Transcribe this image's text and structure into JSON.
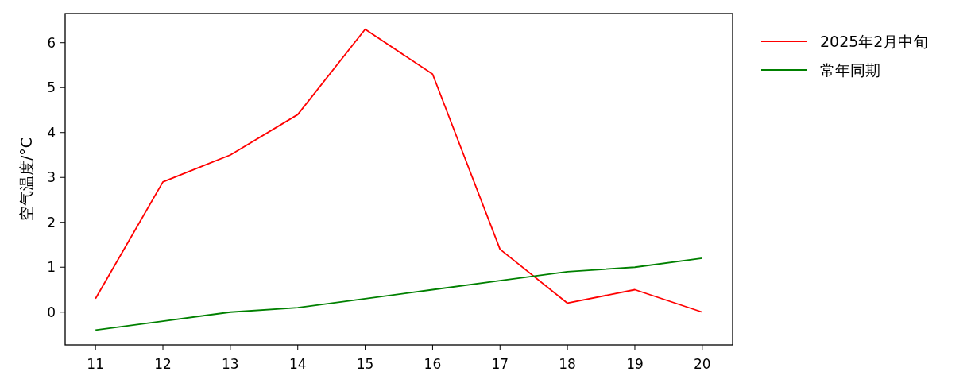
{
  "chart_data": {
    "type": "line",
    "ylabel": "空气温度/°C",
    "x": [
      11,
      12,
      13,
      14,
      15,
      16,
      17,
      18,
      19,
      20
    ],
    "series": [
      {
        "name": "2025年2月中旬",
        "color": "#ff0000",
        "values": [
          0.3,
          2.9,
          3.5,
          4.4,
          6.3,
          5.3,
          1.4,
          0.2,
          0.5,
          0.0
        ]
      },
      {
        "name": "常年同期",
        "color": "#008000",
        "values": [
          -0.4,
          -0.2,
          0.0,
          0.1,
          0.3,
          0.5,
          0.7,
          0.9,
          1.0,
          1.2
        ]
      }
    ],
    "xlim": [
      10.55,
      20.45
    ],
    "xticks": [
      11,
      12,
      13,
      14,
      15,
      16,
      17,
      18,
      19,
      20
    ],
    "ylim": [
      -0.73,
      6.65
    ],
    "yticks": [
      0,
      1,
      2,
      3,
      4,
      5,
      6
    ],
    "grid": false,
    "legend": "top right",
    "marker": "none",
    "line_style": "solid"
  }
}
